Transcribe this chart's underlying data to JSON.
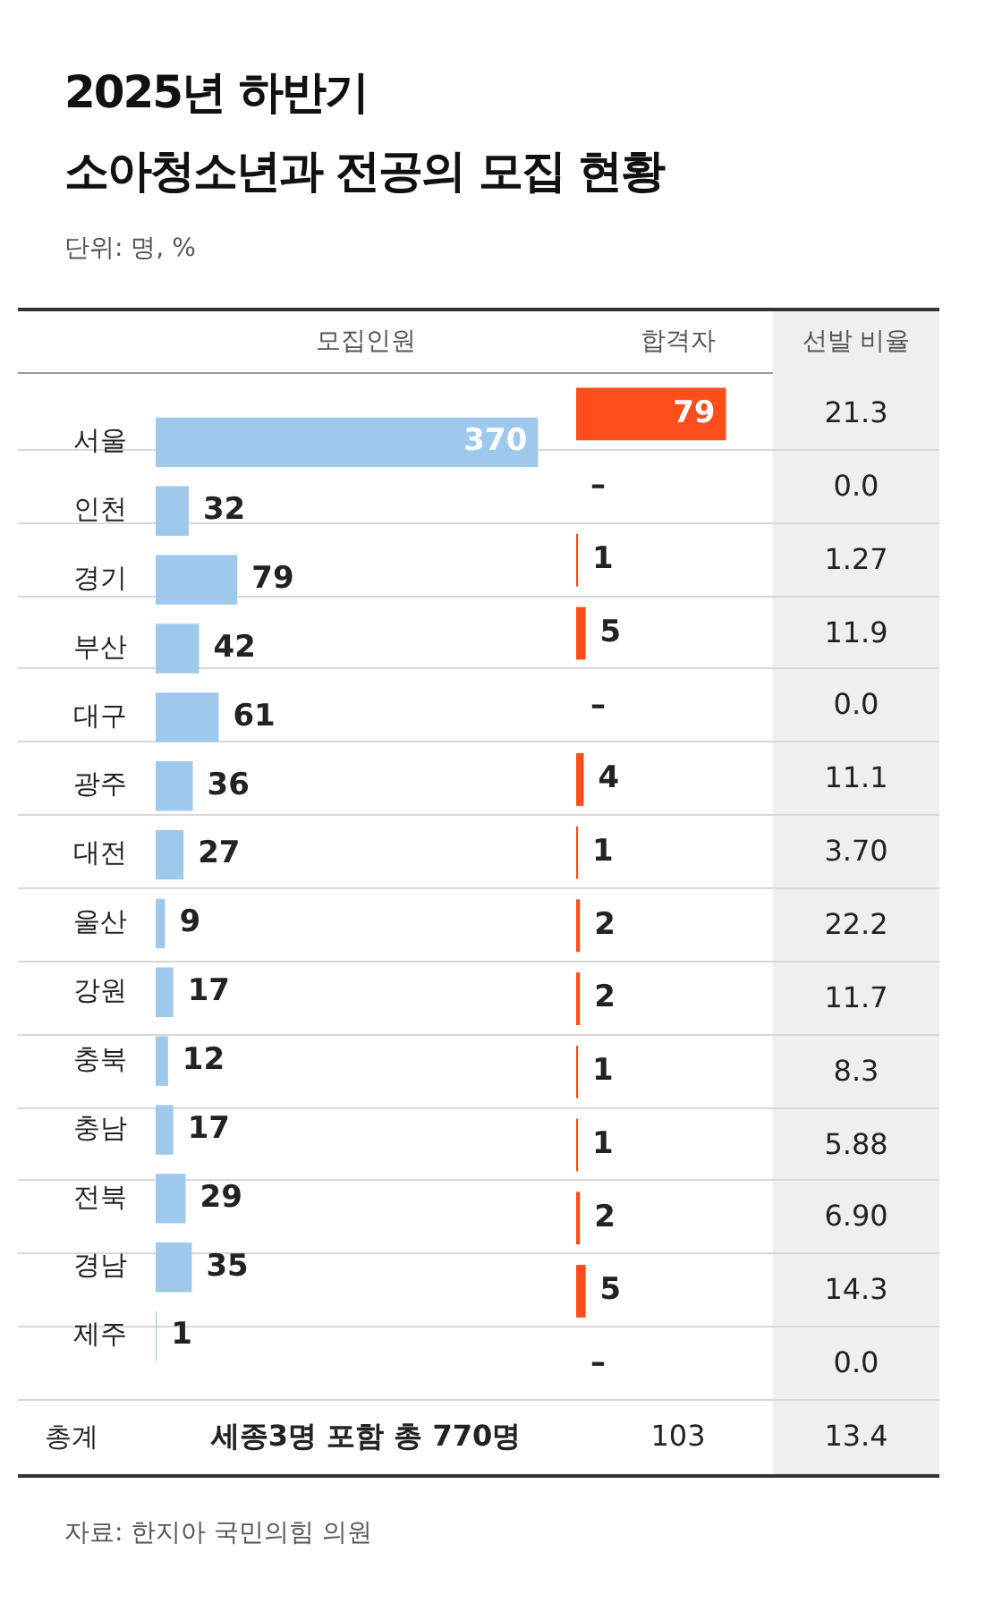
{
  "chart_data": [
    {
      "type": "bar",
      "orientation": "horizontal",
      "title": "2025년 하반기\n소아청소년과 전공의 모집 현황",
      "subtitle": "단위: 명, %",
      "xlabel": "모집인원",
      "categories": [
        "서울",
        "인천",
        "경기",
        "부산",
        "대구",
        "광주",
        "대전",
        "울산",
        "강원",
        "충북",
        "충남",
        "전북",
        "경남",
        "제주"
      ],
      "values": [
        370,
        32,
        79,
        42,
        61,
        36,
        27,
        9,
        17,
        12,
        17,
        29,
        35,
        1
      ],
      "color": "#9ec9ec",
      "data_labels": true,
      "tick_labels": "y",
      "annotations": [
        "총계",
        "세종3명 포함 총 770명",
        "자료: 한지아 국민의힘 의원"
      ]
    },
    {
      "type": "bar",
      "orientation": "horizontal",
      "xlabel": "합격자",
      "values": [
        79,
        null,
        1,
        5,
        null,
        4,
        1,
        2,
        2,
        1,
        1,
        2,
        5,
        null
      ],
      "value_labels": [
        "79",
        "–",
        "1",
        "5",
        "–",
        "4",
        "1",
        "2",
        "2",
        "1",
        "1",
        "2",
        "5",
        "–"
      ],
      "color": "#ff4d1c",
      "tick_labels": false,
      "annotations": [
        "103"
      ]
    },
    {
      "type": "other",
      "title": "선발 비율",
      "annotations": [
        "21.3",
        "0.0",
        "1.27",
        "11.9",
        "0.0",
        "11.1",
        "3.70",
        "22.2",
        "11.7",
        "8.3",
        "5.88",
        "6.90",
        "14.3",
        "0.0",
        "13.4"
      ]
    }
  ]
}
